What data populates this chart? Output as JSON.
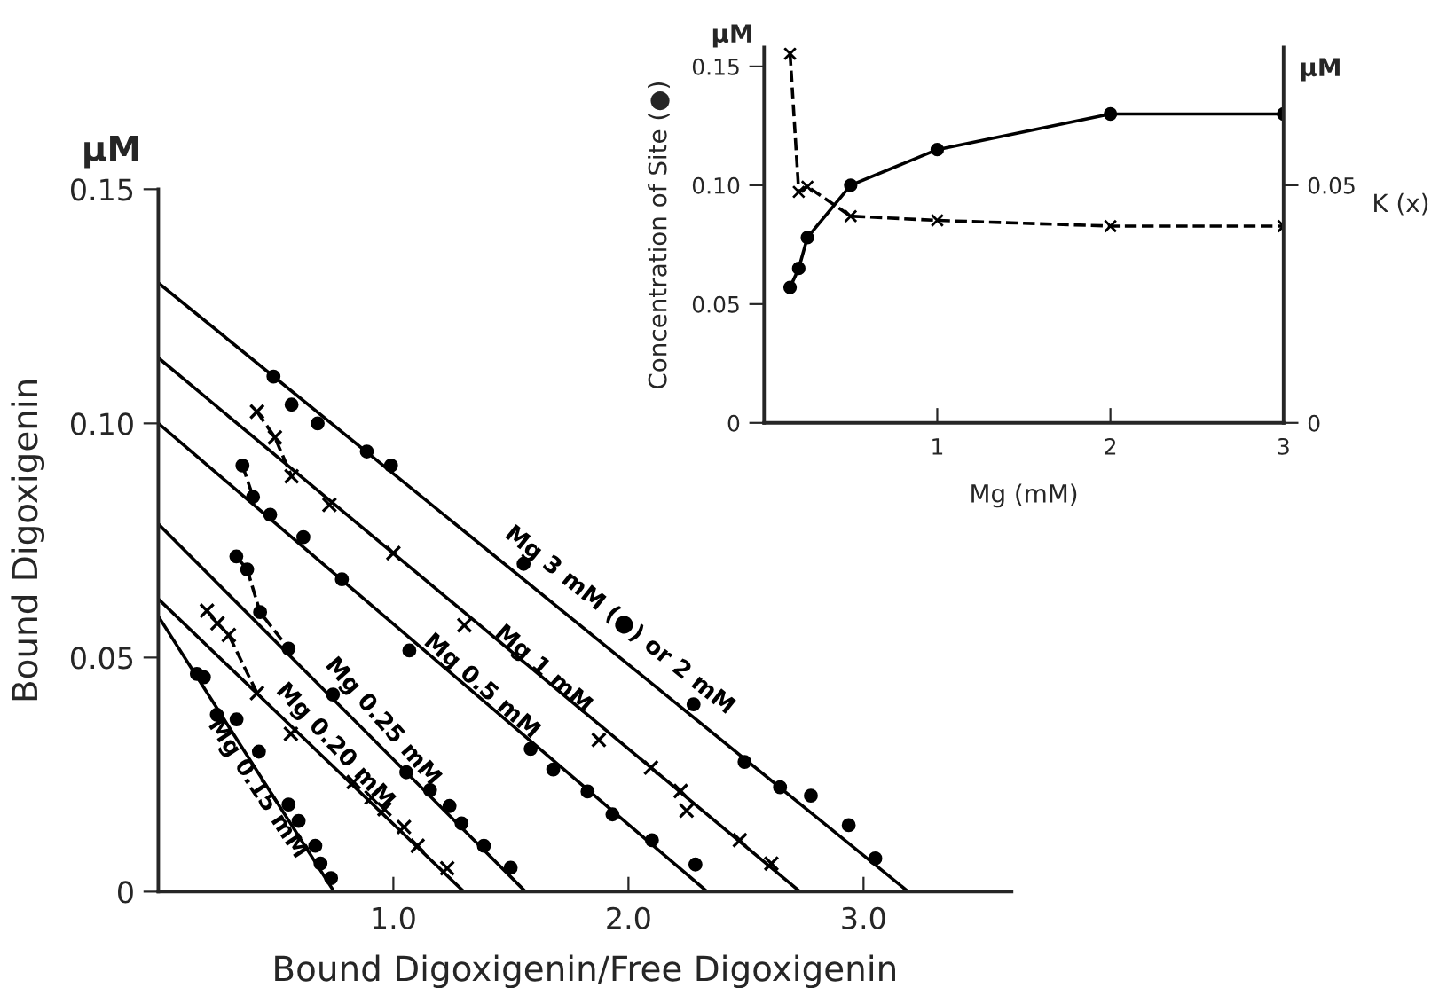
{
  "chart_data": [
    {
      "type": "scatter",
      "xlabel": "Bound Digoxigenin/Free Digoxigenin",
      "ylabel": "Bound Digoxigenin",
      "annotations": [
        "μM"
      ],
      "xlim": [
        0,
        3.63
      ],
      "xticks": [
        {
          "value": 1,
          "label": "1.0"
        },
        {
          "value": 2,
          "label": "2.0"
        },
        {
          "value": 3,
          "label": "3.0"
        }
      ],
      "ylim": [
        0,
        0.15
      ],
      "yticks": [
        0,
        {
          "value": 0.05,
          "label": "0.05"
        },
        {
          "value": 0.1,
          "label": "0.10"
        },
        {
          "value": 0.15,
          "label": "0.15"
        }
      ],
      "series": [
        {
          "type": "line",
          "color": "#000000",
          "x": [
            0,
            3.19
          ],
          "values": [
            0.13,
            0
          ],
          "line_style": "solid"
        },
        {
          "name": "Mg 3 mM (●) or 2 mM",
          "color": "#000000",
          "marker": "circle",
          "x": [
            0.49,
            0.567,
            0.678,
            0.887,
            0.99,
            1.554,
            2.277,
            2.494,
            2.645,
            2.776,
            2.937,
            3.05
          ],
          "values": [
            0.11,
            0.104,
            0.1,
            0.094,
            0.091,
            0.07,
            0.04,
            0.0277,
            0.0223,
            0.0205,
            0.0142,
            0.0071
          ]
        },
        {
          "type": "line",
          "color": "#000000",
          "x": [
            0,
            2.73
          ],
          "values": [
            0.114,
            0
          ],
          "line_style": "solid"
        },
        {
          "name": "Mg 1 mM",
          "color": "#000000",
          "marker": "cross",
          "x": [
            0.42,
            0.496,
            0.567,
            0.728,
            1.0,
            1.302,
            1.874,
            2.096,
            2.222,
            2.247,
            2.474,
            2.608
          ],
          "values": [
            0.1025,
            0.097,
            0.0887,
            0.0826,
            0.0723,
            0.0569,
            0.0324,
            0.0265,
            0.0215,
            0.0173,
            0.011,
            0.006
          ]
        },
        {
          "type": "line",
          "color": "#000000",
          "x": [
            0.42,
            0.496,
            0.567
          ],
          "values": [
            0.1025,
            0.097,
            0.0887
          ],
          "line_style": "dashed"
        },
        {
          "type": "line",
          "color": "#000000",
          "x": [
            0,
            2.335
          ],
          "values": [
            0.1,
            0
          ],
          "line_style": "solid"
        },
        {
          "name": "Mg 0.5 mM",
          "color": "#000000",
          "marker": "circle",
          "x": [
            0.358,
            0.403,
            0.476,
            0.617,
            0.781,
            1.068,
            1.584,
            1.68,
            1.826,
            1.932,
            2.1,
            2.285
          ],
          "values": [
            0.091,
            0.0843,
            0.0805,
            0.0757,
            0.0667,
            0.0515,
            0.0305,
            0.0261,
            0.0214,
            0.0165,
            0.011,
            0.0058
          ]
        },
        {
          "type": "line",
          "color": "#000000",
          "x": [
            0.358,
            0.403
          ],
          "values": [
            0.091,
            0.0843
          ],
          "line_style": "dashed"
        },
        {
          "type": "line",
          "color": "#000000",
          "x": [
            0,
            1.562
          ],
          "values": [
            0.0785,
            0
          ],
          "line_style": "solid"
        },
        {
          "name": "Mg 0.25 mM",
          "color": "#000000",
          "marker": "circle",
          "x": [
            0.332,
            0.378,
            0.433,
            0.554,
            0.743,
            1.055,
            1.156,
            1.239,
            1.29,
            1.385,
            1.499
          ],
          "values": [
            0.0716,
            0.0688,
            0.0597,
            0.0519,
            0.0421,
            0.0255,
            0.0217,
            0.0183,
            0.0146,
            0.0098,
            0.0051
          ]
        },
        {
          "type": "line",
          "color": "#000000",
          "x": [
            0.332,
            0.378,
            0.433,
            0.554
          ],
          "values": [
            0.0716,
            0.0688,
            0.0597,
            0.0519
          ],
          "line_style": "dashed"
        },
        {
          "type": "line",
          "color": "#000000",
          "x": [
            0,
            1.3
          ],
          "values": [
            0.0625,
            0
          ],
          "line_style": "solid"
        },
        {
          "name": "Mg 0.20 mM",
          "color": "#000000",
          "marker": "cross",
          "x": [
            0.207,
            0.252,
            0.3,
            0.42,
            0.564,
            0.831,
            0.907,
            0.962,
            1.045,
            1.103,
            1.229
          ],
          "values": [
            0.06,
            0.0573,
            0.0548,
            0.0424,
            0.0337,
            0.0234,
            0.0201,
            0.0176,
            0.0138,
            0.0098,
            0.005
          ]
        },
        {
          "type": "line",
          "color": "#000000",
          "x": [
            0.207,
            0.252,
            0.3,
            0.42
          ],
          "values": [
            0.06,
            0.0573,
            0.0548,
            0.0424
          ],
          "line_style": "dashed"
        },
        {
          "type": "line",
          "color": "#000000",
          "x": [
            0,
            0.748
          ],
          "values": [
            0.0588,
            0
          ],
          "line_style": "solid"
        },
        {
          "name": "Mg 0.15 mM",
          "color": "#000000",
          "marker": "circle",
          "x": [
            0.164,
            0.194,
            0.249,
            0.333,
            0.428,
            0.554,
            0.597,
            0.668,
            0.69,
            0.735
          ],
          "values": [
            0.0465,
            0.0458,
            0.0378,
            0.0368,
            0.0299,
            0.0186,
            0.0151,
            0.0098,
            0.006,
            0.0029
          ]
        }
      ]
    },
    {
      "type": "line",
      "xlabel": "Mg (mM)",
      "ylabel": "Concentration of Site (●)",
      "y2label": "K (x)",
      "annotations": [
        "μM",
        "μM"
      ],
      "xlim": [
        0,
        3
      ],
      "xticks": [
        1,
        2,
        3
      ],
      "ylim": [
        0,
        0.158
      ],
      "yticks": [
        0,
        {
          "value": 0.05,
          "label": "0.05"
        },
        {
          "value": 0.1,
          "label": "0.10"
        },
        {
          "value": 0.15,
          "label": "0.15"
        }
      ],
      "y2lim": [
        0,
        0.079
      ],
      "y2ticks": [
        0,
        {
          "value": 0.05,
          "label": "0.05"
        }
      ],
      "series": [
        {
          "color": "#000000",
          "marker": "circle",
          "line_style": "solid",
          "x": [
            0.15,
            0.2,
            0.25,
            0.5,
            1,
            2,
            3
          ],
          "values": [
            0.057,
            0.065,
            0.078,
            0.1,
            0.115,
            0.13,
            0.13
          ]
        },
        {
          "axis": "y2",
          "color": "#000000",
          "marker": "cross",
          "line_style": "dashed",
          "x": [
            0.15,
            0.2,
            0.25,
            0.5,
            1,
            2,
            3
          ],
          "values": [
            0.0777,
            0.0486,
            0.0497,
            0.0435,
            0.0426,
            0.0414,
            0.0414
          ]
        }
      ]
    }
  ]
}
